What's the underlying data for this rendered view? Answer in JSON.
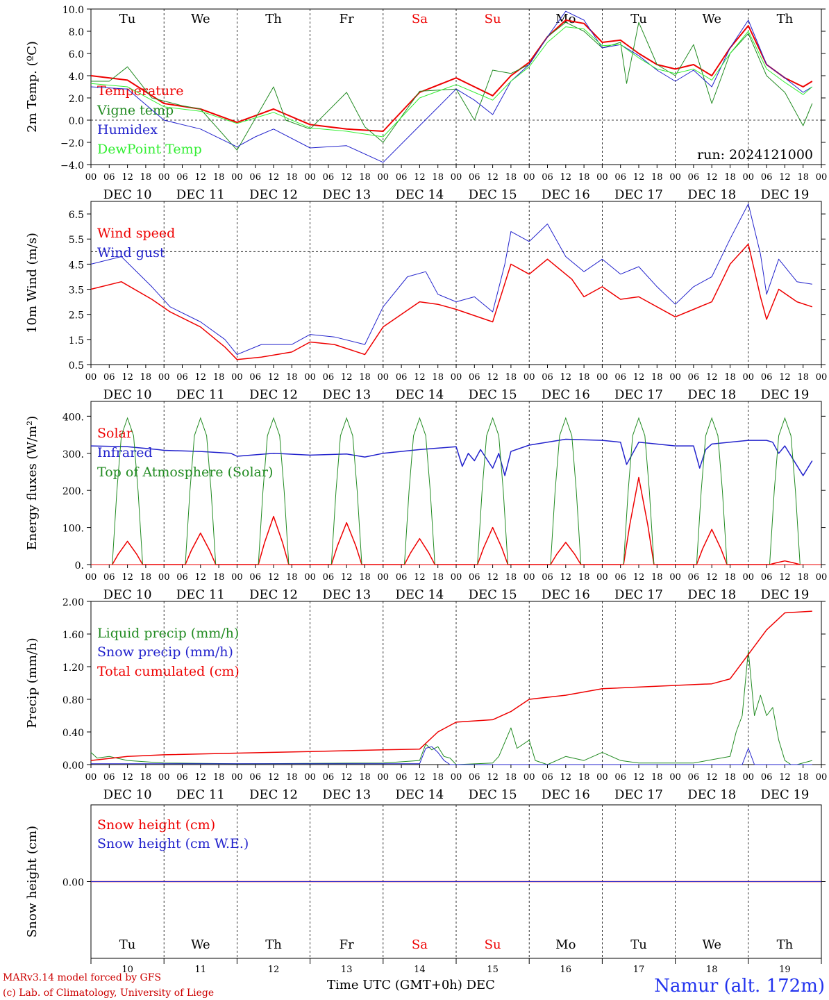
{
  "chart_data": [
    {
      "type": "line",
      "ylabel": "2m Temp. (ºC)",
      "ylim": [
        -4,
        10
      ],
      "yticks": [
        -4,
        -2,
        0,
        2,
        4,
        6,
        8,
        10
      ],
      "ytick_labels": [
        "−4.0",
        "−2.0",
        "0.0",
        "2.0",
        "4.0",
        "6.0",
        "8.0",
        "10.0"
      ],
      "reference_line": 0,
      "annotation": "run: 2024121000",
      "show_days": true,
      "legend_position": "top-left",
      "x_unit": "hours since DEC 10 00 UTC",
      "series": [
        {
          "name": "Temperature",
          "color": "#ee0000",
          "width": 2,
          "x": [
            0,
            12,
            24,
            36,
            48,
            60,
            72,
            84,
            96,
            108,
            120,
            126,
            132,
            138,
            144,
            150,
            156,
            162,
            168,
            174,
            180,
            186,
            192,
            198,
            204,
            210,
            216,
            222,
            228,
            234,
            237
          ],
          "y": [
            4.0,
            3.6,
            1.5,
            1.0,
            -0.2,
            1.0,
            -0.4,
            -0.8,
            -1.0,
            2.5,
            3.8,
            3.0,
            2.2,
            4.0,
            5.2,
            7.5,
            9.0,
            8.7,
            7.0,
            7.2,
            6.0,
            5.0,
            4.6,
            5.0,
            4.0,
            6.5,
            8.5,
            5.0,
            3.8,
            3.0,
            3.5
          ]
        },
        {
          "name": "Vigne temp",
          "color": "#228b22",
          "width": 1,
          "x": [
            0,
            6,
            12,
            20,
            30,
            36,
            48,
            60,
            64,
            72,
            84,
            90,
            96,
            108,
            120,
            126,
            132,
            138,
            144,
            150,
            156,
            162,
            168,
            174,
            176,
            180,
            186,
            192,
            198,
            204,
            210,
            216,
            222,
            228,
            234,
            237
          ],
          "y": [
            3.5,
            3.5,
            4.8,
            2.0,
            1.3,
            1.0,
            -2.7,
            3.0,
            0.0,
            -0.8,
            2.5,
            -0.6,
            -2.0,
            2.6,
            2.8,
            0.0,
            4.5,
            4.2,
            5.0,
            7.5,
            8.8,
            8.0,
            6.5,
            7.0,
            3.3,
            8.8,
            5.0,
            4.0,
            6.8,
            1.5,
            6.0,
            7.8,
            4.0,
            2.5,
            -0.5,
            1.5
          ]
        },
        {
          "name": "Humidex",
          "color": "#2222cc",
          "width": 1,
          "x": [
            0,
            12,
            24,
            36,
            48,
            54,
            60,
            72,
            84,
            96,
            108,
            120,
            126,
            132,
            138,
            144,
            150,
            156,
            162,
            168,
            174,
            180,
            186,
            192,
            198,
            204,
            210,
            216,
            222,
            228,
            234,
            237
          ],
          "y": [
            3.0,
            2.8,
            0.0,
            -0.8,
            -2.4,
            -1.5,
            -0.8,
            -2.5,
            -2.3,
            -3.8,
            -0.5,
            2.8,
            1.8,
            0.5,
            3.5,
            5.0,
            7.5,
            9.8,
            9.0,
            6.5,
            6.8,
            5.8,
            4.5,
            3.5,
            4.5,
            3.0,
            6.5,
            9.0,
            5.0,
            3.8,
            2.5,
            3.0
          ]
        },
        {
          "name": "DewPoint Temp",
          "color": "#33ee33",
          "width": 1,
          "x": [
            0,
            12,
            24,
            36,
            48,
            60,
            72,
            84,
            96,
            108,
            120,
            126,
            132,
            138,
            144,
            150,
            156,
            162,
            168,
            174,
            180,
            186,
            192,
            198,
            204,
            210,
            216,
            222,
            228,
            234,
            237
          ],
          "y": [
            3.3,
            3.0,
            1.2,
            0.8,
            -0.3,
            0.7,
            -0.7,
            -1.0,
            -1.5,
            2.0,
            3.2,
            2.5,
            1.8,
            3.5,
            4.8,
            7.0,
            8.4,
            8.2,
            6.7,
            6.8,
            5.6,
            4.6,
            4.2,
            4.6,
            3.6,
            6.0,
            8.0,
            4.6,
            3.4,
            2.3,
            3.0
          ]
        }
      ]
    },
    {
      "type": "line",
      "ylabel": "10m Wind (m/s)",
      "ylim": [
        0.5,
        7.0
      ],
      "yticks": [
        0.5,
        1.5,
        2.5,
        3.5,
        4.5,
        5.5,
        6.5
      ],
      "ytick_labels": [
        "0.5",
        "1.5",
        "2.5",
        "3.5",
        "4.5",
        "5.5",
        "6.5"
      ],
      "reference_line": 5,
      "show_days": false,
      "legend_position": "top-left",
      "x_unit": "hours since DEC 10 00 UTC",
      "series": [
        {
          "name": "Wind speed",
          "color": "#ee0000",
          "width": 1.5,
          "x": [
            0,
            10,
            20,
            26,
            36,
            44,
            48,
            56,
            66,
            72,
            80,
            90,
            96,
            108,
            114,
            120,
            132,
            138,
            144,
            150,
            158,
            162,
            168,
            174,
            180,
            192,
            198,
            204,
            210,
            216,
            220,
            222,
            226,
            232,
            237
          ],
          "y": [
            3.5,
            3.8,
            3.1,
            2.6,
            2.0,
            1.2,
            0.7,
            0.8,
            1.0,
            1.4,
            1.3,
            0.9,
            2.0,
            3.0,
            2.9,
            2.7,
            2.2,
            4.5,
            4.1,
            4.7,
            3.9,
            3.2,
            3.6,
            3.1,
            3.2,
            2.4,
            2.7,
            3.0,
            4.5,
            5.3,
            3.2,
            2.3,
            3.5,
            3.0,
            2.8
          ]
        },
        {
          "name": "Wind gust",
          "color": "#2222cc",
          "width": 1,
          "x": [
            0,
            10,
            20,
            26,
            36,
            44,
            48,
            56,
            66,
            72,
            80,
            90,
            96,
            104,
            110,
            114,
            120,
            126,
            132,
            136,
            138,
            144,
            150,
            156,
            162,
            168,
            174,
            180,
            186,
            192,
            198,
            204,
            210,
            216,
            220,
            222,
            226,
            232,
            237
          ],
          "y": [
            4.5,
            4.8,
            3.6,
            2.8,
            2.2,
            1.5,
            0.9,
            1.3,
            1.3,
            1.7,
            1.6,
            1.3,
            2.8,
            4.0,
            4.2,
            3.3,
            3.0,
            3.2,
            2.6,
            4.5,
            5.8,
            5.4,
            6.1,
            4.8,
            4.2,
            4.7,
            4.1,
            4.4,
            3.6,
            2.9,
            3.6,
            4.0,
            5.5,
            6.9,
            4.9,
            3.3,
            4.7,
            3.8,
            3.7
          ]
        }
      ]
    },
    {
      "type": "line",
      "ylabel": "Energy fluxes (W/m²)",
      "ylim": [
        0,
        440
      ],
      "yticks": [
        0,
        100,
        200,
        300,
        400
      ],
      "ytick_labels": [
        "0.",
        "100.",
        "200.",
        "300.",
        "400."
      ],
      "show_days": false,
      "legend_position": "top-left",
      "x_unit": "hours since DEC 10 00 UTC",
      "toa_daily_peak": 395,
      "solar_daily_peaks": [
        63,
        85,
        130,
        113,
        70,
        100,
        60,
        235,
        95,
        10
      ],
      "series": [
        {
          "name": "Solar",
          "color": "#ee0000",
          "width": 1.5
        },
        {
          "name": "Infrared",
          "color": "#2222cc",
          "width": 1.5,
          "x": [
            0,
            12,
            22,
            24,
            36,
            46,
            48,
            60,
            72,
            84,
            90,
            96,
            108,
            120,
            122,
            124,
            126,
            128,
            132,
            134,
            136,
            138,
            144,
            156,
            168,
            174,
            176,
            180,
            192,
            198,
            200,
            202,
            204,
            216,
            222,
            224,
            226,
            228,
            234,
            237
          ],
          "y": [
            320,
            318,
            310,
            308,
            305,
            300,
            292,
            300,
            295,
            298,
            290,
            300,
            310,
            318,
            265,
            300,
            280,
            310,
            260,
            300,
            240,
            305,
            322,
            338,
            335,
            330,
            270,
            330,
            320,
            320,
            260,
            310,
            325,
            335,
            335,
            330,
            300,
            320,
            240,
            280
          ]
        }
      ]
    },
    {
      "type": "line",
      "ylabel": "Precip (mm/h)",
      "ylim": [
        0,
        2.0
      ],
      "yticks": [
        0,
        0.4,
        0.8,
        1.2,
        1.6,
        2.0
      ],
      "ytick_labels": [
        "0.00",
        "0.40",
        "0.80",
        "1.20",
        "1.60",
        "2.00"
      ],
      "show_days": false,
      "legend_position": "top-left",
      "x_unit": "hours since DEC 10 00 UTC",
      "series": [
        {
          "name": "Liquid precip (mm/h)",
          "color": "#228b22",
          "width": 1,
          "x": [
            0,
            2,
            6,
            12,
            24,
            48,
            96,
            108,
            110,
            112,
            114,
            116,
            118,
            120,
            132,
            134,
            138,
            140,
            144,
            146,
            150,
            156,
            162,
            168,
            174,
            180,
            198,
            210,
            212,
            214,
            216,
            218,
            220,
            222,
            224,
            226,
            228,
            230,
            232,
            237
          ],
          "y": [
            0.15,
            0.08,
            0.1,
            0.05,
            0.02,
            0.01,
            0.02,
            0.05,
            0.25,
            0.18,
            0.22,
            0.1,
            0.08,
            0.0,
            0.02,
            0.1,
            0.45,
            0.2,
            0.3,
            0.05,
            0.0,
            0.1,
            0.05,
            0.15,
            0.05,
            0.02,
            0.02,
            0.1,
            0.4,
            0.6,
            1.4,
            0.6,
            0.85,
            0.6,
            0.7,
            0.3,
            0.05,
            0.0,
            0.0,
            0.05
          ]
        },
        {
          "name": "Snow precip (mm/h)",
          "color": "#2222cc",
          "width": 1,
          "x": [
            0,
            108,
            110,
            112,
            114,
            116,
            118,
            120,
            214,
            216,
            218,
            220,
            237
          ],
          "y": [
            0.01,
            0.01,
            0.2,
            0.22,
            0.15,
            0.05,
            0.0,
            0.0,
            0.0,
            0.2,
            0.0,
            0.0,
            0.0
          ]
        },
        {
          "name": "Total cumulated (cm)",
          "color": "#ee0000",
          "width": 1.5,
          "x": [
            0,
            12,
            24,
            48,
            72,
            96,
            108,
            114,
            120,
            132,
            138,
            144,
            156,
            168,
            192,
            204,
            210,
            216,
            222,
            228,
            237
          ],
          "y": [
            0.05,
            0.1,
            0.12,
            0.14,
            0.16,
            0.18,
            0.19,
            0.4,
            0.52,
            0.55,
            0.65,
            0.8,
            0.85,
            0.93,
            0.97,
            0.99,
            1.05,
            1.35,
            1.65,
            1.86,
            1.88
          ]
        }
      ]
    },
    {
      "type": "line",
      "ylabel": "Snow height (cm)",
      "ylim": [
        -1,
        1
      ],
      "yticks": [
        0
      ],
      "ytick_labels": [
        "0.00"
      ],
      "show_days": false,
      "legend_position": "top-left",
      "x_unit": "hours since DEC 10 00 UTC",
      "series": [
        {
          "name": "Snow height (cm)",
          "color": "#ee0000",
          "width": 1.5,
          "x": [
            0,
            240
          ],
          "y": [
            0,
            0
          ]
        },
        {
          "name": "Snow height (cm W.E.)",
          "color": "#2222cc",
          "width": 1,
          "x": [
            0,
            240
          ],
          "y": [
            0,
            0
          ]
        }
      ]
    }
  ],
  "x_axis": {
    "hour_ticks": [
      "00",
      "06",
      "12",
      "18"
    ],
    "dates": [
      "DEC 10",
      "DEC 11",
      "DEC 12",
      "DEC 13",
      "DEC 14",
      "DEC 15",
      "DEC 16",
      "DEC 17",
      "DEC 18",
      "DEC 19"
    ],
    "day_numbers": [
      "10",
      "11",
      "12",
      "13",
      "14",
      "15",
      "16",
      "17",
      "18",
      "19"
    ],
    "weekdays": [
      "Tu",
      "We",
      "Th",
      "Fr",
      "Sa",
      "Su",
      "Mo",
      "Tu",
      "We",
      "Th"
    ],
    "weekend_indices": [
      4,
      5
    ],
    "xlabel": "Time UTC (GMT+0h) DEC"
  },
  "colors": {
    "weekday": "#000000",
    "weekend": "#ee0000"
  },
  "footer": {
    "line1": "MARv3.14 model forced by GFS",
    "line2": "(c) Lab. of Climatology, University of Liege",
    "station": "Namur (alt. 172m)"
  }
}
